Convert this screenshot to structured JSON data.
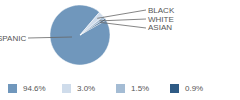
{
  "chart_data": {
    "type": "pie",
    "categories": [
      "HISPANIC",
      "BLACK",
      "WHITE",
      "ASIAN"
    ],
    "values": [
      94.6,
      3.0,
      1.5,
      0.9
    ],
    "value_labels": [
      "94.6%",
      "3.0%",
      "1.5%",
      "0.9%"
    ],
    "colors": [
      "#7097bc",
      "#cfdceb",
      "#a4bcd4",
      "#2f5b85"
    ]
  }
}
